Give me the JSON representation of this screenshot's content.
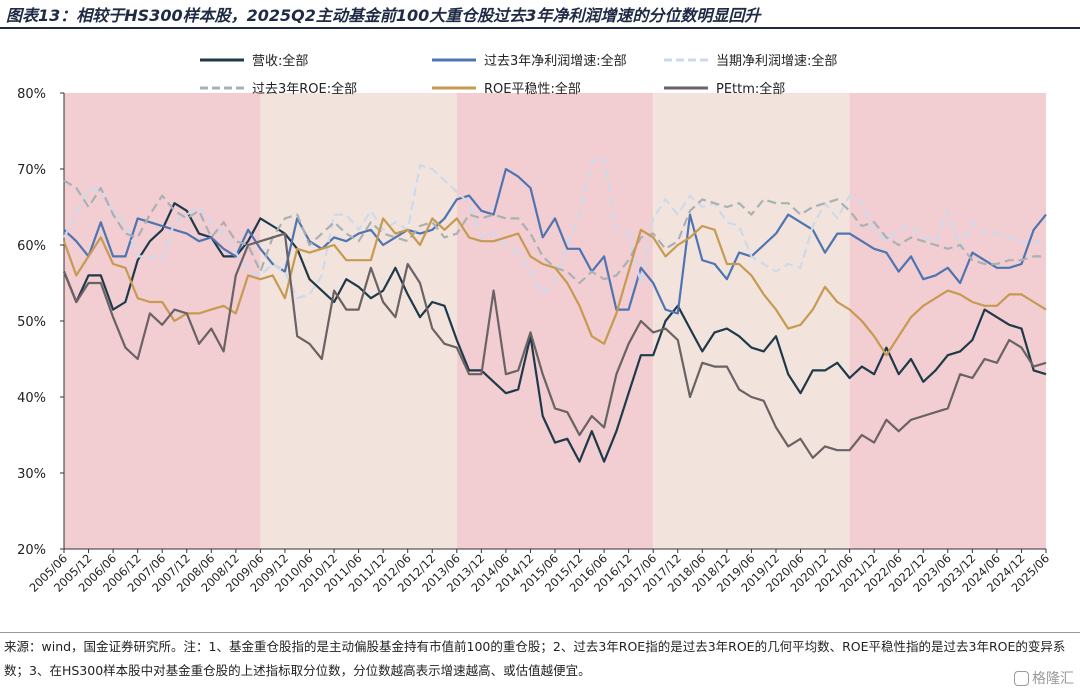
{
  "title": "图表13：相较于HS300样本股，2025Q2主动基金前100大重仓股过去3年净利润增速的分位数明显回升",
  "source_note": "来源：wind，国金证券研究所。注：1、基金重仓股指的是主动偏股基金持有市值前100的重仓股；2、过去3年ROE指的是过去3年ROE的几何平均数、ROE平稳性指的是过去3年ROE的变异系数；3、在HS300样本股中对基金重仓股的上述指标取分位数，分位数越高表示增速越高、或估值越便宜。",
  "watermark": "格隆汇",
  "chart_data": {
    "type": "line",
    "ylim": [
      20,
      80
    ],
    "yticks": [
      "20%",
      "30%",
      "40%",
      "50%",
      "60%",
      "70%",
      "80%"
    ],
    "x_labels": [
      "2005/06",
      "2005/12",
      "2006/06",
      "2006/12",
      "2007/06",
      "2007/12",
      "2008/06",
      "2008/12",
      "2009/06",
      "2009/12",
      "2010/06",
      "2010/12",
      "2011/06",
      "2011/12",
      "2012/06",
      "2012/12",
      "2013/06",
      "2013/12",
      "2014/06",
      "2014/12",
      "2015/06",
      "2015/12",
      "2016/06",
      "2016/12",
      "2017/06",
      "2017/12",
      "2018/06",
      "2018/12",
      "2019/06",
      "2019/12",
      "2020/06",
      "2020/12",
      "2021/06",
      "2021/12",
      "2022/06",
      "2022/12",
      "2023/06",
      "2023/12",
      "2024/06",
      "2024/12",
      "2025/06"
    ],
    "bands": [
      {
        "from": "2005/06",
        "to": "2009/06",
        "color": "#f2cdd1"
      },
      {
        "from": "2009/06",
        "to": "2013/06",
        "color": "#f2e4dc"
      },
      {
        "from": "2013/06",
        "to": "2017/06",
        "color": "#f2cdd1"
      },
      {
        "from": "2017/06",
        "to": "2021/06",
        "color": "#f2e4dc"
      },
      {
        "from": "2021/06",
        "to": "2025/06",
        "color": "#f2cdd1"
      }
    ],
    "series": [
      {
        "name": "营收:全部",
        "color": "#1e3a4a",
        "dash": "solid",
        "values": [
          56.5,
          52.5,
          56,
          56,
          51.5,
          52.5,
          58,
          60.5,
          62,
          65.5,
          64.5,
          61.5,
          61,
          58.5,
          58.5,
          60.5,
          63.5,
          62.5,
          61.5,
          59.5,
          55.5,
          54,
          52.5,
          55.5,
          54.5,
          53,
          54,
          57,
          53.5,
          50.5,
          52.5,
          52,
          47.5,
          43.5,
          43.5,
          42,
          40.5,
          41,
          48,
          37.5,
          34,
          34.5,
          31.5,
          35.5,
          31.5,
          35.5,
          40.5,
          45.5,
          45.5,
          50,
          52,
          49,
          46,
          48.5,
          49,
          48,
          46.5,
          46,
          48,
          43,
          40.5,
          43.5,
          43.5,
          44.5,
          42.5,
          44,
          43,
          46.5,
          43,
          45,
          42,
          43.5,
          45.5,
          46,
          47.5,
          51.5,
          50.5,
          49.5,
          49,
          43.5,
          43
        ]
      },
      {
        "name": "过去3年净利润增速:全部",
        "color": "#4f74b2",
        "dash": "solid",
        "values": [
          62,
          60.5,
          58.5,
          63,
          58.5,
          58.5,
          63.5,
          63,
          62.5,
          62,
          61.5,
          60.5,
          61,
          59.5,
          58.5,
          62,
          59.5,
          57.5,
          56.5,
          63.5,
          60.5,
          59.5,
          61,
          60.5,
          61.5,
          62,
          60,
          61,
          62,
          61.5,
          62,
          63.5,
          66,
          66.5,
          64.5,
          64,
          70,
          69,
          67.5,
          61,
          63.5,
          59.5,
          59.5,
          56.5,
          58.5,
          51.5,
          51.5,
          57,
          55,
          51.5,
          51,
          64,
          58,
          57.5,
          55.5,
          59,
          58.5,
          60,
          61.5,
          64,
          63,
          62,
          59,
          61.5,
          61.5,
          60.5,
          59.5,
          59,
          56.5,
          58.5,
          55.5,
          56,
          57,
          55,
          59,
          58,
          57,
          57,
          57.5,
          62,
          64
        ]
      },
      {
        "name": "当期净利润增速:全部",
        "color": "#ccdaec",
        "dash": "dash",
        "values": [
          61,
          64,
          67.5,
          67,
          64.5,
          63,
          58.5,
          58.5,
          58,
          63,
          64,
          65,
          63,
          61.5,
          59,
          56.5,
          56,
          57.5,
          56.5,
          53,
          53.5,
          56,
          64,
          64,
          62,
          64.5,
          62,
          63,
          62,
          70.5,
          70,
          68.5,
          67,
          65.5,
          61,
          61.5,
          60,
          59,
          56.5,
          53.5,
          55.5,
          60,
          64,
          71,
          71.5,
          62,
          61.5,
          55,
          63.5,
          66,
          64,
          66.5,
          65,
          65.5,
          63,
          62.5,
          58.5,
          57.5,
          56.5,
          57.5,
          57,
          62.5,
          65.5,
          63.5,
          66.5,
          65.5,
          62,
          60.5,
          62,
          62.5,
          61,
          60.5,
          64.5,
          59.5,
          63,
          61.5,
          61.5,
          61,
          60.5,
          60.5,
          60
        ]
      },
      {
        "name": "过去3年ROE:全部",
        "color": "#a8b1b4",
        "dash": "dash",
        "values": [
          68.5,
          67.5,
          65,
          67.5,
          64,
          61.5,
          61,
          64,
          66.5,
          64.5,
          63.5,
          64.5,
          61,
          63,
          60.5,
          60,
          56.5,
          61,
          63.5,
          64,
          60,
          61.5,
          63,
          61.5,
          60.5,
          63,
          61.5,
          61,
          60.5,
          62.5,
          63,
          61,
          61.5,
          64,
          63.5,
          64,
          63.5,
          63.5,
          61.5,
          58.5,
          57,
          56.5,
          55,
          56.5,
          55.5,
          56,
          58,
          61,
          61.5,
          59.5,
          60.5,
          64.5,
          66,
          65.5,
          65,
          65.5,
          64,
          66,
          65.5,
          65.5,
          64,
          65,
          65.5,
          66,
          64.5,
          62.5,
          63,
          61,
          60,
          61,
          60.5,
          60,
          59.5,
          60,
          58,
          57.5,
          57.5,
          58,
          58,
          58.5,
          58.5
        ]
      },
      {
        "name": "ROE平稳性:全部",
        "color": "#c79a52",
        "dash": "solid",
        "values": [
          60.5,
          56,
          58.5,
          61,
          57.5,
          57,
          53,
          52.5,
          52.5,
          50,
          51,
          51,
          51.5,
          52,
          51,
          56,
          55.5,
          56,
          53,
          59.5,
          59,
          59.5,
          60,
          58,
          58,
          58,
          63.5,
          61.5,
          62,
          60,
          63.5,
          62,
          63.5,
          61,
          60.5,
          60.5,
          61,
          61.5,
          58.5,
          57.5,
          57,
          55,
          52,
          48,
          47,
          51,
          56.5,
          62,
          61,
          58.5,
          60,
          61,
          62.5,
          62,
          57.5,
          57.5,
          56,
          53.5,
          51.5,
          49,
          49.5,
          51.5,
          54.5,
          52.5,
          51.5,
          50,
          48,
          45.5,
          48,
          50.5,
          52,
          53,
          54,
          53.5,
          52.5,
          52,
          52,
          53.5,
          53.5,
          52.5,
          51.5
        ]
      },
      {
        "name": "PEttm:全部",
        "color": "#6a6264",
        "dash": "solid",
        "values": [
          56.5,
          52.5,
          55,
          55,
          50.5,
          46.5,
          45,
          51,
          49.5,
          51.5,
          51,
          47,
          49,
          46,
          56,
          60,
          60.5,
          61,
          61.5,
          48,
          47,
          45,
          54,
          51.5,
          51.5,
          57,
          52.5,
          50.5,
          57.5,
          55,
          49,
          47,
          46.5,
          43,
          43,
          54,
          43,
          43.5,
          48.5,
          43,
          38.5,
          38,
          35,
          37.5,
          36,
          43,
          47,
          50,
          48.5,
          49,
          47.5,
          40,
          44.5,
          44,
          44,
          41,
          40,
          39.5,
          36,
          33.5,
          34.5,
          32,
          33.5,
          33,
          33,
          35,
          34,
          37,
          35.5,
          37,
          37.5,
          38,
          38.5,
          43,
          42.5,
          45,
          44.5,
          47.5,
          46.5,
          44,
          44.5
        ]
      }
    ]
  }
}
